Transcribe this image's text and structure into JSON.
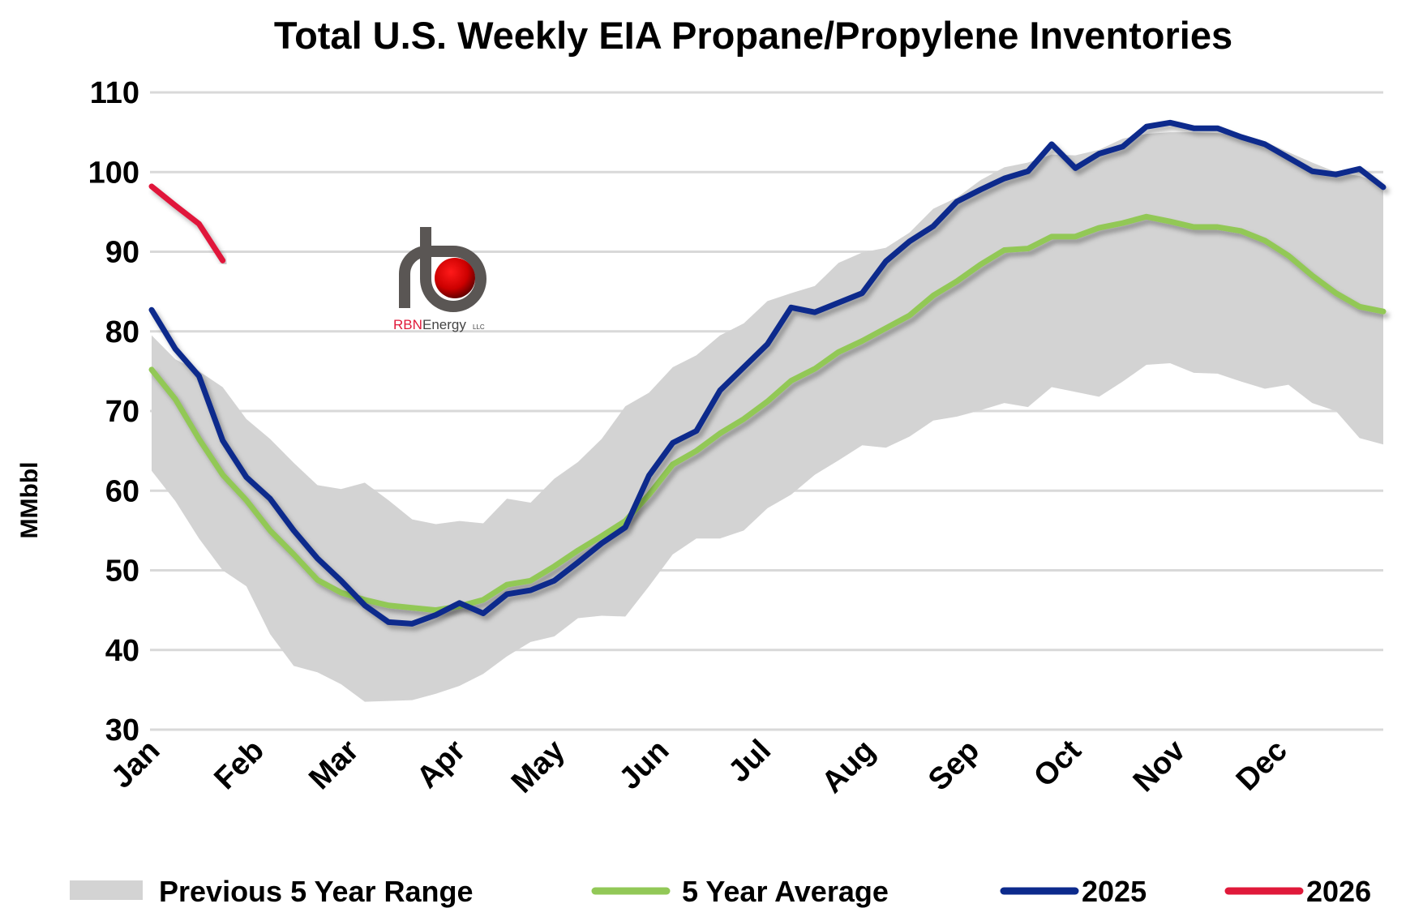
{
  "chart_data": {
    "type": "line",
    "title": "Total U.S. Weekly EIA Propane/Propylene Inventories",
    "ylabel": "MMbbl",
    "xlabel": "",
    "ylim": [
      30,
      110
    ],
    "yticks": [
      30,
      40,
      50,
      60,
      70,
      80,
      90,
      100,
      110
    ],
    "grid": true,
    "legend_position": "bottom",
    "x_unit": "week of year",
    "month_labels": [
      {
        "label": "Jan",
        "week": 1
      },
      {
        "label": "Feb",
        "week": 5.4
      },
      {
        "label": "Mar",
        "week": 9.4
      },
      {
        "label": "Apr",
        "week": 13.9
      },
      {
        "label": "May",
        "week": 18.1
      },
      {
        "label": "Jun",
        "week": 22.5
      },
      {
        "label": "Jul",
        "week": 26.8
      },
      {
        "label": "Aug",
        "week": 31.2
      },
      {
        "label": "Sep",
        "week": 35.6
      },
      {
        "label": "Oct",
        "week": 39.9
      },
      {
        "label": "Nov",
        "week": 44.3
      },
      {
        "label": "Dec",
        "week": 48.6
      }
    ],
    "range": {
      "name": "Previous 5 Year Range",
      "color": "#d3d3d3",
      "upper": [
        79.5,
        76.5,
        75,
        73,
        69,
        66.5,
        63.5,
        60.7,
        60.2,
        61,
        58.8,
        56.4,
        55.8,
        56.2,
        55.9,
        59,
        58.5,
        61.5,
        63.6,
        66.5,
        70.6,
        72.3,
        75.5,
        77,
        79.5,
        81,
        83.8,
        84.8,
        85.7,
        88.6,
        89.9,
        90.5,
        92.4,
        95.4,
        96.8,
        99,
        100.6,
        101.2,
        102.2,
        102.1,
        102.8,
        104.2,
        104.8,
        105,
        105,
        104.9,
        104.6,
        103.8,
        102.5,
        101.2,
        100,
        99.5,
        98.5
      ],
      "lower": [
        62.5,
        58.7,
        54,
        50,
        48,
        42,
        38,
        37.2,
        35.7,
        33.5,
        33.6,
        33.7,
        34.5,
        35.5,
        37,
        39.2,
        41,
        41.7,
        44,
        44.3,
        44.2,
        48,
        52,
        54,
        54,
        55,
        57.8,
        59.5,
        62,
        63.8,
        65.7,
        65.4,
        66.8,
        68.8,
        69.3,
        70.1,
        71,
        70.5,
        73,
        72.4,
        71.8,
        73.7,
        75.8,
        76,
        74.8,
        74.7,
        73.7,
        72.8,
        73.3,
        71,
        70,
        66.6,
        65.8
      ]
    },
    "series": [
      {
        "name": "5 Year Average",
        "color": "#92c857",
        "values": [
          75.2,
          71.5,
          66.5,
          62,
          58.8,
          55,
          52,
          48.8,
          47.2,
          46.3,
          45.6,
          45.3,
          45,
          45.5,
          46.3,
          48.2,
          48.7,
          50.5,
          52.5,
          54.3,
          56.2,
          59.5,
          63.3,
          65,
          67.2,
          69,
          71.2,
          73.8,
          75.3,
          77.4,
          78.8,
          80.4,
          82,
          84.5,
          86.3,
          88.4,
          90.2,
          90.4,
          91.9,
          91.9,
          93,
          93.6,
          94.4,
          93.8,
          93.1,
          93.1,
          92.6,
          91.4,
          89.5,
          87,
          84.8,
          83.1,
          82.5
        ]
      },
      {
        "name": "2025",
        "color": "#0c2a8c",
        "values": [
          82.7,
          77.8,
          74.4,
          66.3,
          61.7,
          59,
          55,
          51.5,
          48.7,
          45.6,
          43.5,
          43.3,
          44.4,
          45.9,
          44.6,
          47,
          47.5,
          48.7,
          51,
          53.4,
          55.4,
          61.9,
          66,
          67.5,
          72.6,
          75.5,
          78.4,
          83,
          82.4,
          83.6,
          84.8,
          88.8,
          91.3,
          93.2,
          96.3,
          97.8,
          99.2,
          100.1,
          103.5,
          100.5,
          102.3,
          103.2,
          105.7,
          106.2,
          105.5,
          105.5,
          104.4,
          103.5,
          101.8,
          100.1,
          99.7,
          100.4,
          98.1
        ]
      },
      {
        "name": "2026",
        "color": "#e0193a",
        "values": [
          98.2,
          95.8,
          93.5,
          88.9
        ]
      }
    ]
  },
  "logo": {
    "text_red": "RBN",
    "text_gray": "Energy",
    "suffix": "LLC"
  }
}
